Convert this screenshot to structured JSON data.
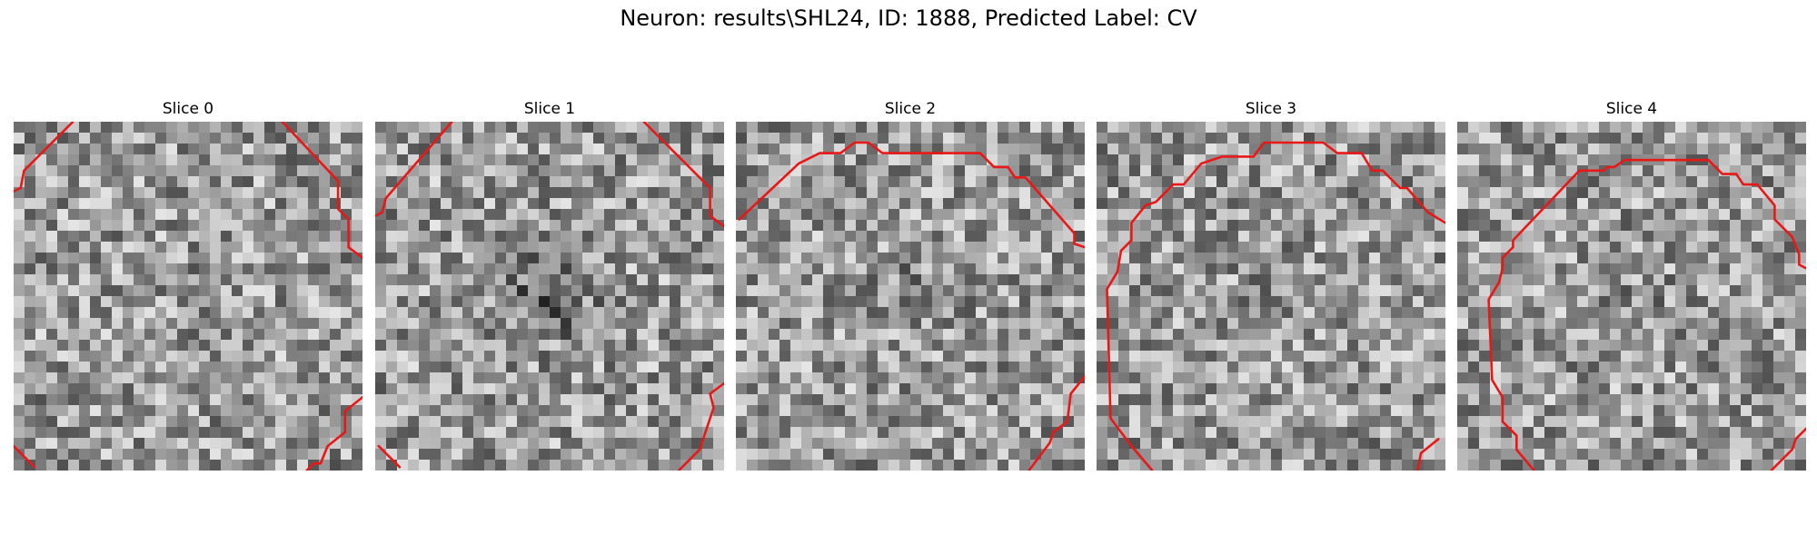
{
  "figure": {
    "title": "Neuron: results\\SHL24, ID: 1888, Predicted Label: CV"
  },
  "colors": {
    "contour": "#e81818",
    "background": "#ffffff"
  },
  "slices": [
    {
      "title": "Slice 0",
      "seed": 11,
      "center_dark": 0.05,
      "contours": [
        [
          [
            0.17,
            0
          ],
          [
            0.03,
            0.14
          ],
          [
            0.02,
            0.19
          ],
          [
            0,
            0.2
          ]
        ],
        [
          [
            0.77,
            0
          ],
          [
            0.93,
            0.17
          ],
          [
            0.93,
            0.25
          ],
          [
            0.96,
            0.28
          ],
          [
            0.96,
            0.36
          ],
          [
            1,
            0.39
          ]
        ],
        [
          [
            0,
            0.93
          ],
          [
            0.06,
            0.99
          ]
        ],
        [
          [
            0.84,
            1
          ],
          [
            0.86,
            0.98
          ],
          [
            0.88,
            0.98
          ],
          [
            0.9,
            0.93
          ],
          [
            0.95,
            0.89
          ],
          [
            0.95,
            0.83
          ],
          [
            1,
            0.79
          ]
        ]
      ]
    },
    {
      "title": "Slice 1",
      "seed": 23,
      "center_dark": 0.55,
      "contours": [
        [
          [
            0.22,
            0
          ],
          [
            0.03,
            0.22
          ],
          [
            0.02,
            0.26
          ],
          [
            0,
            0.27
          ]
        ],
        [
          [
            0.77,
            0
          ],
          [
            0.96,
            0.19
          ],
          [
            0.96,
            0.27
          ],
          [
            1,
            0.3
          ]
        ],
        [
          [
            0.01,
            0.93
          ],
          [
            0.07,
            0.99
          ]
        ],
        [
          [
            0.87,
            1
          ],
          [
            0.93,
            0.94
          ],
          [
            0.95,
            0.88
          ],
          [
            0.97,
            0.82
          ],
          [
            0.96,
            0.78
          ],
          [
            1,
            0.75
          ]
        ]
      ]
    },
    {
      "title": "Slice 2",
      "seed": 37,
      "center_dark": 0.15,
      "contours": [
        [
          [
            0.01,
            0.28
          ],
          [
            0.18,
            0.12
          ],
          [
            0.24,
            0.09
          ],
          [
            0.3,
            0.09
          ],
          [
            0.34,
            0.06
          ],
          [
            0.38,
            0.06
          ],
          [
            0.42,
            0.09
          ],
          [
            0.7,
            0.09
          ],
          [
            0.74,
            0.13
          ],
          [
            0.78,
            0.13
          ],
          [
            0.8,
            0.16
          ],
          [
            0.83,
            0.16
          ],
          [
            0.97,
            0.32
          ],
          [
            0.97,
            0.35
          ],
          [
            1,
            0.36
          ]
        ],
        [
          [
            0.84,
            1
          ],
          [
            0.87,
            0.96
          ],
          [
            0.9,
            0.92
          ],
          [
            0.91,
            0.89
          ],
          [
            0.95,
            0.86
          ],
          [
            0.96,
            0.78
          ],
          [
            1,
            0.73
          ]
        ]
      ]
    },
    {
      "title": "Slice 3",
      "seed": 51,
      "center_dark": 0.1,
      "contours": [
        [
          [
            0.16,
            1
          ],
          [
            0.1,
            0.93
          ],
          [
            0.04,
            0.85
          ],
          [
            0.03,
            0.48
          ],
          [
            0.06,
            0.43
          ],
          [
            0.07,
            0.37
          ],
          [
            0.1,
            0.34
          ],
          [
            0.1,
            0.29
          ],
          [
            0.14,
            0.24
          ],
          [
            0.17,
            0.23
          ],
          [
            0.22,
            0.18
          ],
          [
            0.25,
            0.18
          ],
          [
            0.3,
            0.12
          ],
          [
            0.36,
            0.1
          ],
          [
            0.45,
            0.1
          ],
          [
            0.48,
            0.06
          ],
          [
            0.65,
            0.06
          ],
          [
            0.69,
            0.09
          ],
          [
            0.76,
            0.09
          ],
          [
            0.79,
            0.14
          ],
          [
            0.82,
            0.14
          ],
          [
            0.87,
            0.19
          ],
          [
            0.89,
            0.19
          ],
          [
            0.95,
            0.26
          ],
          [
            1,
            0.29
          ]
        ],
        [
          [
            0.92,
            1
          ],
          [
            0.93,
            0.95
          ],
          [
            0.98,
            0.91
          ]
        ]
      ]
    },
    {
      "title": "Slice 4",
      "seed": 73,
      "center_dark": 0.08,
      "contours": [
        [
          [
            0.22,
            1
          ],
          [
            0.17,
            0.94
          ],
          [
            0.17,
            0.9
          ],
          [
            0.13,
            0.86
          ],
          [
            0.13,
            0.79
          ],
          [
            0.1,
            0.74
          ],
          [
            0.09,
            0.51
          ],
          [
            0.12,
            0.46
          ],
          [
            0.13,
            0.42
          ],
          [
            0.13,
            0.39
          ],
          [
            0.16,
            0.36
          ],
          [
            0.16,
            0.34
          ],
          [
            0.35,
            0.14
          ],
          [
            0.42,
            0.14
          ],
          [
            0.43,
            0.13
          ],
          [
            0.45,
            0.13
          ],
          [
            0.48,
            0.11
          ],
          [
            0.72,
            0.11
          ],
          [
            0.76,
            0.15
          ],
          [
            0.8,
            0.15
          ],
          [
            0.82,
            0.18
          ],
          [
            0.86,
            0.18
          ],
          [
            0.91,
            0.24
          ],
          [
            0.91,
            0.28
          ],
          [
            0.96,
            0.33
          ],
          [
            0.98,
            0.38
          ],
          [
            0.98,
            0.41
          ],
          [
            1,
            0.42
          ]
        ],
        [
          [
            0.9,
            1
          ],
          [
            0.96,
            0.94
          ],
          [
            0.97,
            0.91
          ],
          [
            1,
            0.88
          ]
        ]
      ]
    }
  ]
}
